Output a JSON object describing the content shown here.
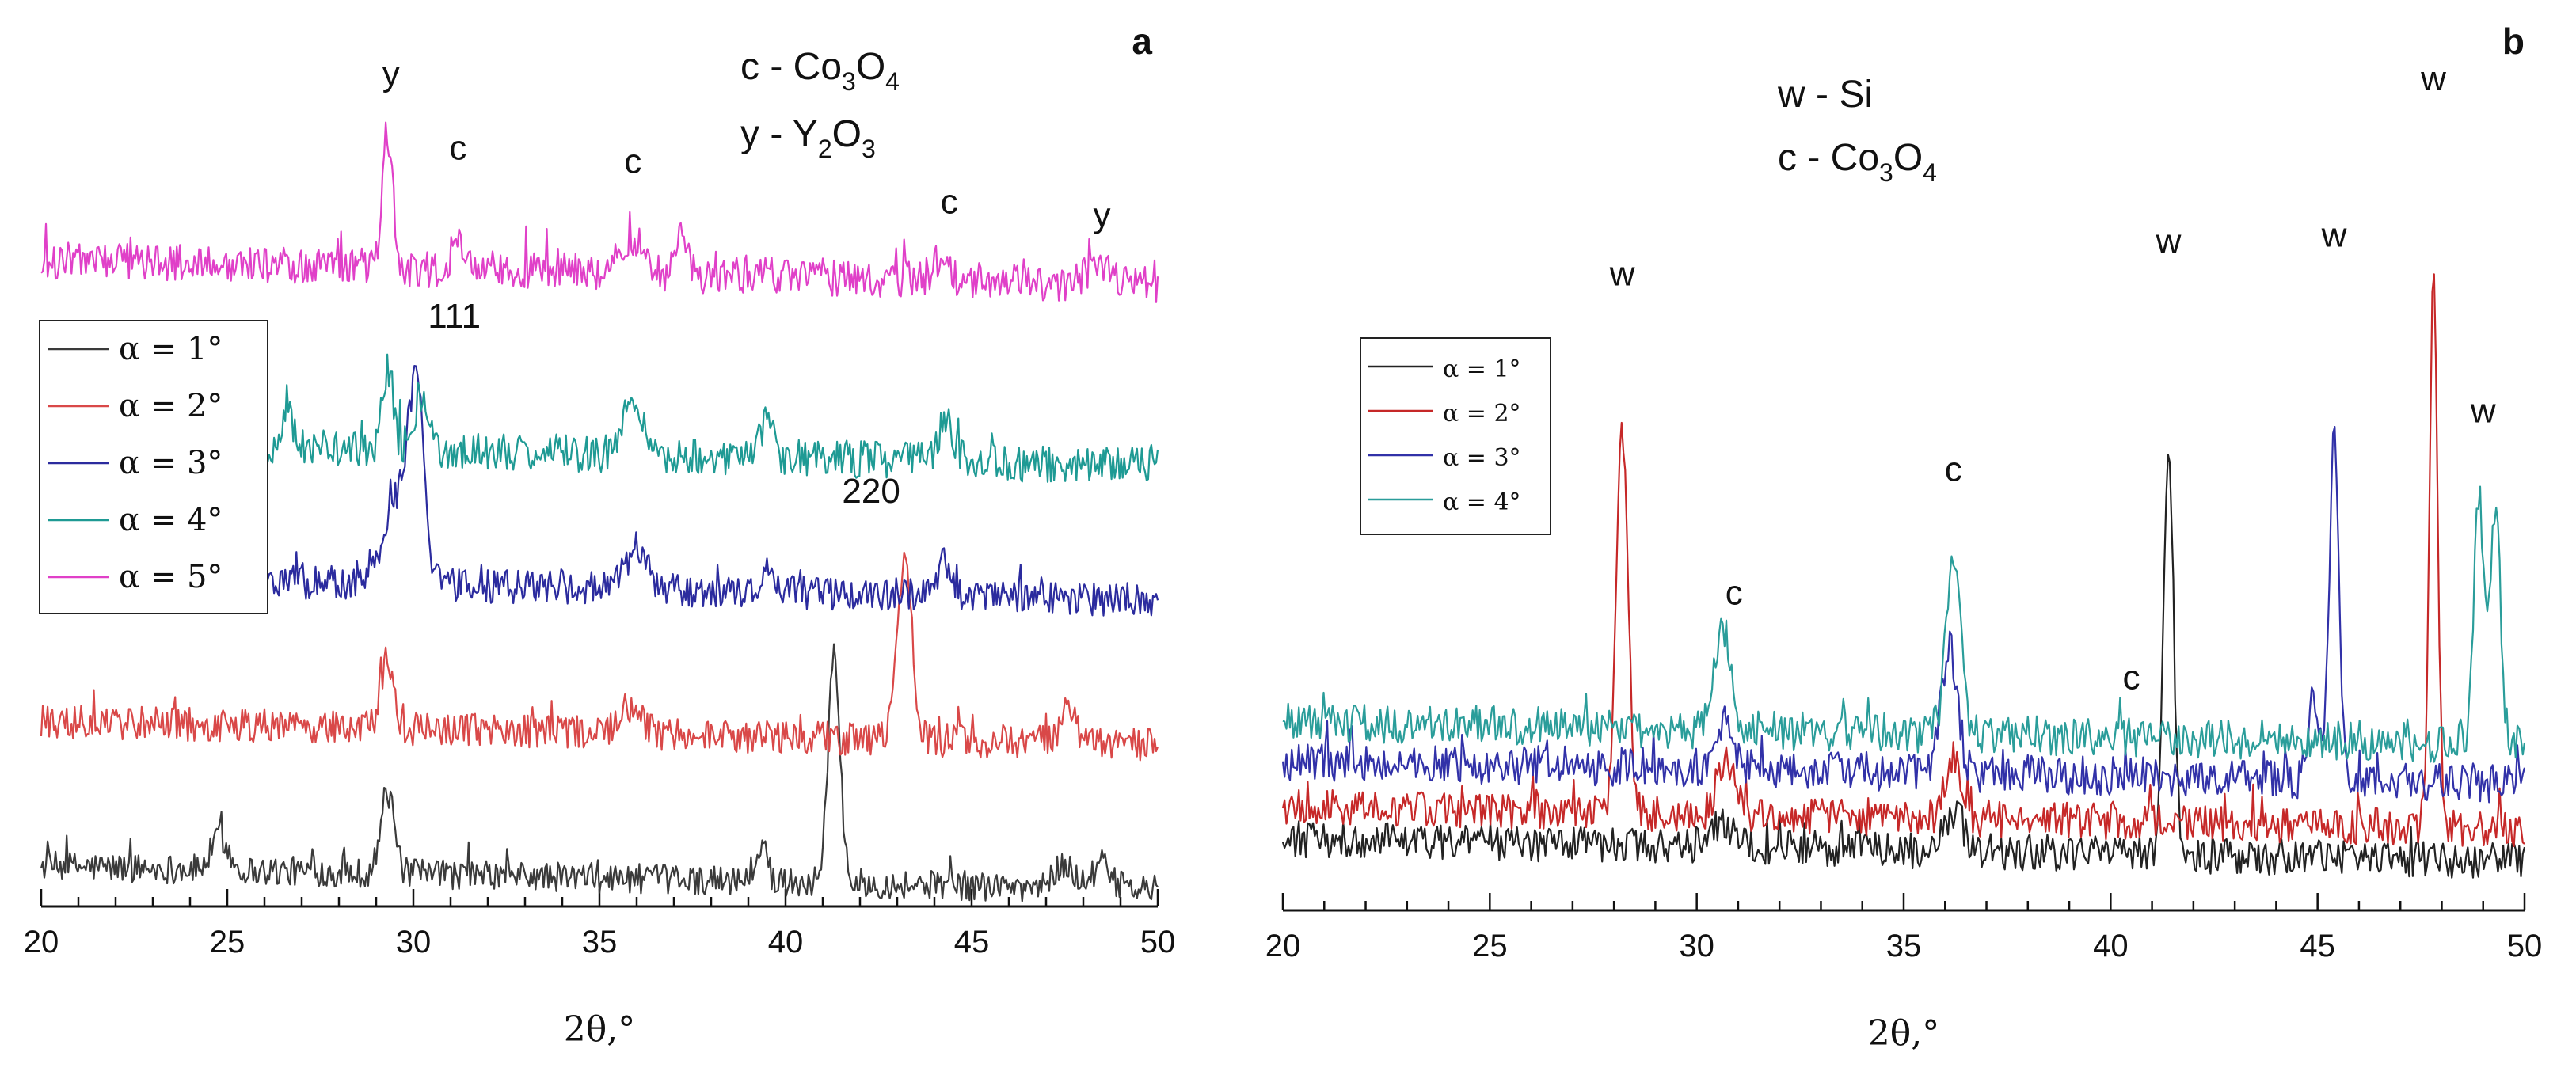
{
  "chart_data": [
    {
      "panel": "a",
      "type": "line",
      "title": "",
      "panel_label": "a",
      "xlabel": "2θ,°",
      "ylabel": "",
      "xlim": [
        20,
        50
      ],
      "xticks": [
        "20",
        "25",
        "30",
        "35",
        "40",
        "45",
        "50"
      ],
      "key": [
        {
          "symbol": "c",
          "sep": " - ",
          "base": "Co",
          "s1": "3",
          "mid": "O",
          "s2": "4"
        },
        {
          "symbol": "y",
          "sep": " - ",
          "base": "Y",
          "s1": "2",
          "mid": "O",
          "s2": "3"
        }
      ],
      "series": [
        {
          "name": "α = 1°",
          "color": "#3a3a3a",
          "baseline": 0.6,
          "noise": 0.22,
          "peaks": [
            [
              24.8,
              0.5,
              0.22
            ],
            [
              29.3,
              1.2,
              0.18
            ],
            [
              39.4,
              0.6,
              0.12
            ],
            [
              41.3,
              3.3,
              0.16
            ],
            [
              47.5,
              0.35,
              0.25
            ],
            [
              48.5,
              0.35,
              0.25
            ]
          ]
        },
        {
          "name": "α = 2°",
          "color": "#d94848",
          "baseline": 2.75,
          "noise": 0.25,
          "peaks": [
            [
              29.3,
              1.0,
              0.18
            ],
            [
              35.8,
              0.4,
              0.3
            ],
            [
              43.2,
              2.6,
              0.2
            ],
            [
              47.6,
              0.5,
              0.2
            ]
          ]
        },
        {
          "name": "α = 3°",
          "color": "#2b2b9e",
          "baseline": 4.9,
          "noise": 0.25,
          "peaks": [
            [
              29.6,
              1.3,
              0.35
            ],
            [
              30.1,
              2.6,
              0.2
            ],
            [
              36.0,
              0.6,
              0.3
            ],
            [
              39.5,
              0.5,
              0.12
            ],
            [
              44.3,
              0.5,
              0.2
            ]
          ]
        },
        {
          "name": "α = 4°",
          "color": "#1e9a94",
          "baseline": 6.9,
          "noise": 0.28,
          "peaks": [
            [
              26.6,
              0.7,
              0.12
            ],
            [
              29.3,
              1.2,
              0.15
            ],
            [
              30.2,
              0.8,
              0.2
            ],
            [
              35.9,
              0.7,
              0.3
            ],
            [
              39.5,
              0.6,
              0.15
            ],
            [
              44.3,
              0.6,
              0.2
            ]
          ]
        },
        {
          "name": "α = 5°",
          "color": "#e040c8",
          "baseline": 9.6,
          "noise": 0.28,
          "peaks": [
            [
              29.3,
              2.0,
              0.14
            ],
            [
              31.2,
              0.5,
              0.15
            ],
            [
              35.9,
              0.5,
              0.3
            ],
            [
              37.2,
              0.5,
              0.15
            ],
            [
              44.2,
              0.35,
              0.2
            ],
            [
              48.5,
              0.3,
              0.3
            ]
          ]
        }
      ],
      "annotations": [
        {
          "text": "y",
          "x": 29.4,
          "y": 12.2
        },
        {
          "text": "c",
          "x": 31.2,
          "y": 11.1
        },
        {
          "text": "c",
          "x": 35.9,
          "y": 10.9
        },
        {
          "text": "c",
          "x": 44.4,
          "y": 10.3
        },
        {
          "text": "y",
          "x": 48.5,
          "y": 10.1
        },
        {
          "text": "111",
          "x": 31.1,
          "y": 8.6
        },
        {
          "text": "220",
          "x": 42.3,
          "y": 6.0
        }
      ],
      "legend_position": "left"
    },
    {
      "panel": "b",
      "type": "line",
      "title": "",
      "panel_label": "b",
      "xlabel": "2θ,°",
      "ylabel": "",
      "xlim": [
        20,
        50
      ],
      "xticks": [
        "20",
        "25",
        "30",
        "35",
        "40",
        "45",
        "50"
      ],
      "key": [
        {
          "symbol": "w",
          "sep": " - ",
          "base": "Si",
          "s1": "",
          "mid": "",
          "s2": ""
        },
        {
          "symbol": "c",
          "sep": " - ",
          "base": "Co",
          "s1": "3",
          "mid": "O",
          "s2": "4"
        }
      ],
      "series": [
        {
          "name": "α = 1°",
          "color": "#222222",
          "baseline": 1.1,
          "noise": 0.28,
          "peaks": [
            [
              30.6,
              0.3,
              0.3
            ],
            [
              36.2,
              0.6,
              0.25
            ],
            [
              41.4,
              6.3,
              0.12
            ]
          ]
        },
        {
          "name": "α = 2°",
          "color": "#c62828",
          "baseline": 1.6,
          "noise": 0.28,
          "peaks": [
            [
              28.2,
              5.8,
              0.14
            ],
            [
              30.7,
              0.9,
              0.2
            ],
            [
              36.2,
              1.0,
              0.2
            ],
            [
              47.8,
              8.4,
              0.1
            ]
          ]
        },
        {
          "name": "α = 3°",
          "color": "#3131a8",
          "baseline": 2.3,
          "noise": 0.3,
          "peaks": [
            [
              30.7,
              0.7,
              0.2
            ],
            [
              36.1,
              1.9,
              0.2
            ],
            [
              44.9,
              1.2,
              0.12
            ],
            [
              45.4,
              5.2,
              0.12
            ]
          ]
        },
        {
          "name": "α = 4°",
          "color": "#2a9d9a",
          "baseline": 2.9,
          "noise": 0.3,
          "peaks": [
            [
              30.6,
              1.5,
              0.2
            ],
            [
              36.2,
              2.6,
              0.18
            ],
            [
              48.9,
              3.8,
              0.12
            ],
            [
              49.3,
              3.6,
              0.12
            ]
          ]
        }
      ],
      "annotations": [
        {
          "text": "w",
          "x": 28.2,
          "y": 9.6
        },
        {
          "text": "c",
          "x": 30.9,
          "y": 4.7
        },
        {
          "text": "c",
          "x": 36.2,
          "y": 6.6
        },
        {
          "text": "c",
          "x": 40.5,
          "y": 3.4
        },
        {
          "text": "w",
          "x": 41.4,
          "y": 10.1
        },
        {
          "text": "w",
          "x": 45.4,
          "y": 10.2
        },
        {
          "text": "w",
          "x": 47.8,
          "y": 12.6
        },
        {
          "text": "w",
          "x": 49.0,
          "y": 7.5
        }
      ],
      "legend_position": "upper-left"
    }
  ]
}
